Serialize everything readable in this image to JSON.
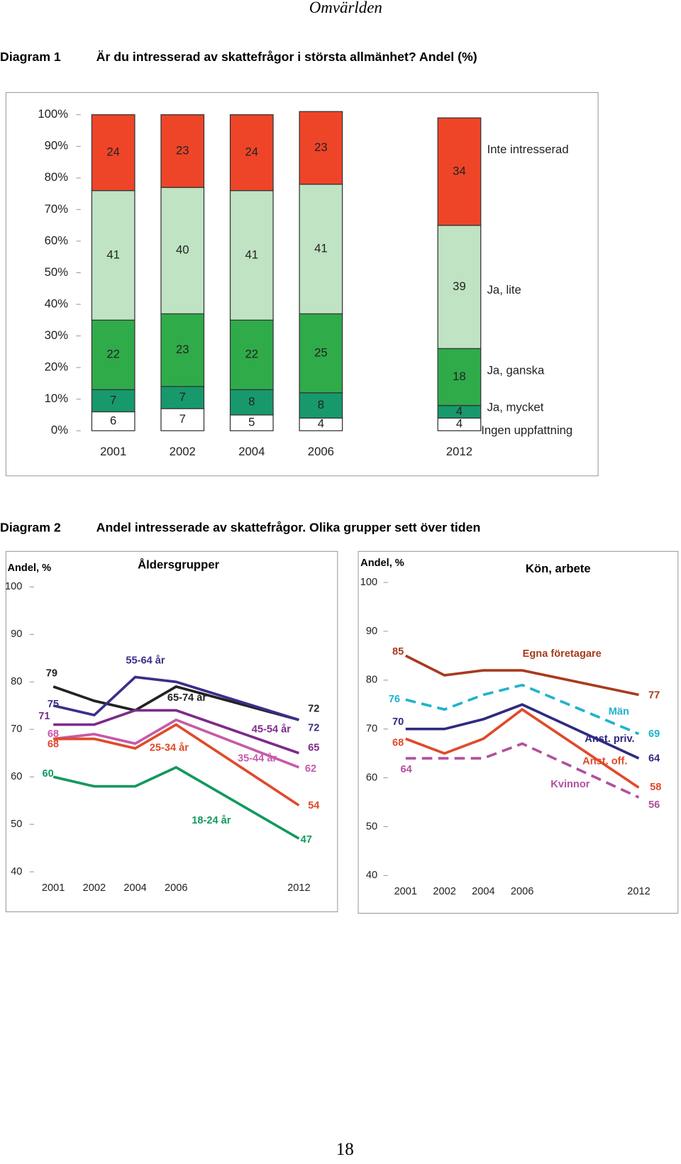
{
  "header": "Omvärlden",
  "page_number": "18",
  "diagram2": {
    "label": "Diagram 2",
    "title": "Andel intresserade av skattefrågor. Olika grupper sett över tiden"
  },
  "chart_data": [
    {
      "type": "bar",
      "stacked": true,
      "label": "Diagram 1",
      "title": "Är du intresserad av skattefrågor i största allmänhet? Andel (%)",
      "categories": [
        "2001",
        "2002",
        "2004",
        "2006",
        "2012"
      ],
      "series": [
        {
          "name": "Ingen uppfattning",
          "color": "#ffffff",
          "values": [
            6,
            7,
            5,
            4,
            4
          ]
        },
        {
          "name": "Ja, mycket",
          "color": "#17996c",
          "values": [
            7,
            7,
            8,
            8,
            4
          ]
        },
        {
          "name": "Ja, ganska",
          "color": "#2fab4a",
          "values": [
            22,
            23,
            22,
            25,
            18
          ]
        },
        {
          "name": "Ja, lite",
          "color": "#bfe3c3",
          "values": [
            41,
            40,
            41,
            41,
            39
          ]
        },
        {
          "name": "Inte intresserad",
          "color": "#ee4529",
          "values": [
            24,
            23,
            24,
            23,
            34
          ]
        }
      ],
      "ylim": [
        0,
        100
      ],
      "yticks": [
        {
          "value": 0,
          "label": "0%"
        },
        {
          "value": 10,
          "label": "10%"
        },
        {
          "value": 20,
          "label": "20%"
        },
        {
          "value": 30,
          "label": "30%"
        },
        {
          "value": 40,
          "label": "40%"
        },
        {
          "value": 50,
          "label": "50%"
        },
        {
          "value": 60,
          "label": "60%"
        },
        {
          "value": 70,
          "label": "70%"
        },
        {
          "value": 80,
          "label": "80%"
        },
        {
          "value": 90,
          "label": "90%"
        },
        {
          "value": 100,
          "label": "100%"
        }
      ]
    },
    {
      "type": "line",
      "title": "Åldersgrupper",
      "y_label": "Andel, %",
      "categories": [
        "2001",
        "2002",
        "2004",
        "2006",
        "2012"
      ],
      "series": [
        {
          "name": "65-74 år",
          "color": "#222222",
          "values": [
            79,
            76,
            74,
            79,
            72
          ]
        },
        {
          "name": "55-64 år",
          "color": "#3a2f8a",
          "values": [
            75,
            73,
            81,
            80,
            72
          ]
        },
        {
          "name": "45-54 år",
          "color": "#7d2a8c",
          "values": [
            71,
            71,
            74,
            74,
            65
          ]
        },
        {
          "name": "35-44 år",
          "color": "#c65aa8",
          "values": [
            68,
            69,
            67,
            72,
            62
          ]
        },
        {
          "name": "25-34 år",
          "color": "#e04a2a",
          "values": [
            68,
            68,
            66,
            71,
            54
          ]
        },
        {
          "name": "18-24 år",
          "color": "#12995e",
          "values": [
            60,
            58,
            58,
            62,
            47
          ]
        }
      ],
      "ylim": [
        40,
        100
      ],
      "yticks": [
        40,
        50,
        60,
        70,
        80,
        90,
        100
      ]
    },
    {
      "type": "line",
      "title": "Kön, arbete",
      "y_label": "Andel, %",
      "categories": [
        "2001",
        "2002",
        "2004",
        "2006",
        "2012"
      ],
      "series": [
        {
          "name": "Egna företagare",
          "color": "#a83a1e",
          "dashed": false,
          "values": [
            85,
            81,
            82,
            82,
            77
          ]
        },
        {
          "name": "Män",
          "color": "#1fb3cc",
          "dashed": true,
          "values": [
            76,
            74,
            77,
            79,
            69
          ]
        },
        {
          "name": "Anst. priv.",
          "color": "#2f2a80",
          "dashed": false,
          "values": [
            70,
            70,
            72,
            75,
            64
          ]
        },
        {
          "name": "Anst. off.",
          "color": "#e04a2a",
          "dashed": false,
          "values": [
            68,
            65,
            68,
            74,
            58
          ]
        },
        {
          "name": "Kvinnor",
          "color": "#b0509e",
          "dashed": true,
          "values": [
            64,
            64,
            64,
            67,
            56
          ]
        }
      ],
      "ylim": [
        40,
        100
      ],
      "yticks": [
        40,
        50,
        60,
        70,
        80,
        90,
        100
      ]
    }
  ]
}
